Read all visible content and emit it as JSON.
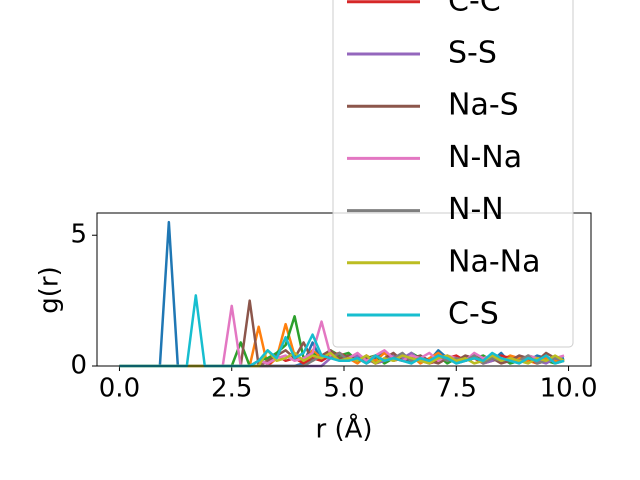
{
  "chart_data": {
    "type": "line",
    "xlabel": "r (Å)",
    "ylabel": "g(r)",
    "x": [
      0,
      0.1,
      0.3,
      0.5,
      0.7,
      0.9,
      1.1,
      1.3,
      1.5,
      1.7,
      1.9,
      2.1,
      2.3,
      2.5,
      2.7,
      2.9,
      3.1,
      3.3,
      3.5,
      3.7,
      3.9,
      4.1,
      4.3,
      4.5,
      4.7,
      4.9,
      5.1,
      5.3,
      5.5,
      5.7,
      5.9,
      6.1,
      6.3,
      6.5,
      6.7,
      6.9,
      7.1,
      7.3,
      7.5,
      7.7,
      7.9,
      8.1,
      8.3,
      8.5,
      8.7,
      8.9,
      9.1,
      9.3,
      9.5,
      9.7,
      9.9
    ],
    "xlim": [
      -0.5,
      10.5
    ],
    "xticks": [
      {
        "value": 0,
        "label": "0.0"
      },
      {
        "value": 2.5,
        "label": "2.5"
      },
      {
        "value": 5,
        "label": "5.0"
      },
      {
        "value": 7.5,
        "label": "7.5"
      },
      {
        "value": 10,
        "label": "10.0"
      }
    ],
    "ylim": [
      0,
      5.85
    ],
    "yticks": [
      0,
      5
    ],
    "grid": false,
    "legend": "upper right",
    "series": [
      {
        "color": "#1f77b4",
        "values": [
          0,
          0,
          0,
          0,
          0,
          0,
          5.5,
          0,
          0,
          0,
          0,
          0,
          0,
          0,
          0,
          0,
          0,
          0,
          0,
          0,
          0,
          0.1,
          0.9,
          0.2,
          0.5,
          0.3,
          0.2,
          0.4,
          0.1,
          0.3,
          0.5,
          0.2,
          0.3,
          0.1,
          0.4,
          0.2,
          0.6,
          0.3,
          0.1,
          0.2,
          0.4,
          0.3,
          0.2,
          0.5,
          0.1,
          0.3,
          0.2,
          0.4,
          0.3,
          0.2,
          0.3
        ]
      },
      {
        "color": "#ff7f0e",
        "values": [
          0,
          0,
          0,
          0,
          0,
          0,
          0,
          0,
          0,
          0,
          0,
          0,
          0,
          0,
          0,
          0,
          1.5,
          0,
          0.3,
          1.6,
          0.4,
          0.2,
          0.6,
          0.3,
          0.5,
          0.2,
          0.3,
          0.1,
          0.4,
          0.2,
          0.5,
          0.2,
          0.3,
          0.4,
          0.1,
          0.3,
          0.5,
          0.2,
          0.3,
          0.2,
          0.4,
          0.1,
          0.3,
          0.2,
          0.4,
          0.3,
          0.2,
          0.1,
          0.3,
          0.2,
          0.2
        ]
      },
      {
        "color": "#2ca02c",
        "values": [
          0,
          0,
          0,
          0,
          0,
          0,
          0,
          0,
          0,
          0,
          0,
          0,
          0,
          0,
          0.9,
          0,
          0.2,
          0.3,
          0.5,
          0.8,
          1.9,
          0.3,
          0.5,
          0.2,
          0.6,
          0.4,
          0.5,
          0.2,
          0.3,
          0.4,
          0.1,
          0.3,
          0.2,
          0.5,
          0.3,
          0.2,
          0.4,
          0.1,
          0.3,
          0.2,
          0.3,
          0.4,
          0.2,
          0.3,
          0.1,
          0.2,
          0.4,
          0.3,
          0.2,
          0.1,
          0.2
        ]
      },
      {
        "name": "C-C",
        "color": "#d62728",
        "values": [
          0,
          0,
          0,
          0,
          0,
          0,
          0,
          0,
          0,
          0,
          0,
          0,
          0,
          0,
          0,
          0,
          0,
          0,
          0.4,
          0.2,
          0.3,
          0.1,
          0.3,
          0.2,
          0.4,
          0.5,
          0.3,
          0.2,
          0.4,
          0.1,
          0.2,
          0.3,
          0.2,
          0.4,
          0.3,
          0.1,
          0.2,
          0.3,
          0.4,
          0.2,
          0.3,
          0.1,
          0.2,
          0.4,
          0.3,
          0.2,
          0.3,
          0.1,
          0.2,
          0.3,
          0.2
        ]
      },
      {
        "name": "S-S",
        "color": "#9467bd",
        "values": [
          0,
          0,
          0,
          0,
          0,
          0,
          0,
          0,
          0,
          0,
          0,
          0,
          0,
          0,
          0,
          0,
          0,
          0,
          0,
          0,
          0,
          0,
          0,
          0,
          0.3,
          0.5,
          0.2,
          0.4,
          0.3,
          0.1,
          0.2,
          0.4,
          0.3,
          0.5,
          0.2,
          0.1,
          0.3,
          0.4,
          0.2,
          0.3,
          0.4,
          0.1,
          0.2,
          0.3,
          0.2,
          0.4,
          0.3,
          0.2,
          0.1,
          0.3,
          0.2
        ]
      },
      {
        "name": "Na-S",
        "color": "#8c564b",
        "values": [
          0,
          0,
          0,
          0,
          0,
          0,
          0,
          0,
          0,
          0,
          0,
          0,
          0,
          0,
          0,
          2.5,
          0,
          0.2,
          0.4,
          0.6,
          0.3,
          0.9,
          0.2,
          0.4,
          0.6,
          0.3,
          0.4,
          0.2,
          0.3,
          0.1,
          0.3,
          0.5,
          0.2,
          0.3,
          0.4,
          0.2,
          0.1,
          0.3,
          0.2,
          0.4,
          0.3,
          0.2,
          0.3,
          0.1,
          0.2,
          0.4,
          0.3,
          0.2,
          0.5,
          0.3,
          0.2
        ]
      },
      {
        "name": "N-Na",
        "color": "#e377c2",
        "values": [
          0,
          0,
          0,
          0,
          0,
          0,
          0,
          0,
          0,
          0,
          0,
          0,
          0,
          2.3,
          0,
          0,
          0.2,
          0.1,
          0.3,
          0.4,
          0.2,
          0.3,
          0.5,
          1.7,
          0.4,
          0.2,
          0.3,
          0.5,
          0.2,
          0.4,
          0.6,
          0.3,
          0.2,
          0.4,
          0.3,
          0.5,
          0.2,
          0.4,
          0.3,
          0.2,
          0.5,
          0.3,
          0.4,
          0.2,
          0.3,
          0.1,
          0.4,
          0.3,
          0.2,
          0.3,
          0.4
        ]
      },
      {
        "name": "N-N",
        "color": "#7f7f7f",
        "values": [
          0,
          0,
          0,
          0,
          0,
          0,
          0,
          0,
          0,
          0,
          0,
          0,
          0,
          0,
          0,
          0,
          0,
          0,
          0,
          0,
          0,
          0,
          0.2,
          0.4,
          0.3,
          0.5,
          0.2,
          0.3,
          0.1,
          0.4,
          0.2,
          0.3,
          0.5,
          0.2,
          0.3,
          0.1,
          0.4,
          0.2,
          0.3,
          0.2,
          0.4,
          0.1,
          0.3,
          0.2,
          0.3,
          0.2,
          0.4,
          0.1,
          0.2,
          0.3,
          0.2
        ]
      },
      {
        "name": "Na-Na",
        "color": "#bcbd22",
        "values": [
          0,
          0,
          0,
          0,
          0,
          0,
          0,
          0,
          0,
          0,
          0,
          0,
          0,
          0,
          0,
          0,
          0,
          0.6,
          0.2,
          0.3,
          0.5,
          0.2,
          0.4,
          0.3,
          0.5,
          0.2,
          0.3,
          0.2,
          0.4,
          0.1,
          0.3,
          0.2,
          0.4,
          0.3,
          0.2,
          0.1,
          0.3,
          0.4,
          0.2,
          0.3,
          0.1,
          0.2,
          0.4,
          0.2,
          0.3,
          0.2,
          0.1,
          0.3,
          0.2,
          0.4,
          0.2
        ]
      },
      {
        "name": "C-S",
        "color": "#17becf",
        "values": [
          0,
          0,
          0,
          0,
          0,
          0,
          0,
          0,
          0,
          2.7,
          0,
          0,
          0,
          0,
          0,
          0,
          0.2,
          0.6,
          0.3,
          1.1,
          0.3,
          0.5,
          1.2,
          0.4,
          0.3,
          0.2,
          0.2,
          0.3,
          0.1,
          0.4,
          0.2,
          0.3,
          0.2,
          0.1,
          0.3,
          0.2,
          0.4,
          0.3,
          0.1,
          0.2,
          0.3,
          0.2,
          0.5,
          0.3,
          0.2,
          0.1,
          0.3,
          0.2,
          0.4,
          0.1,
          0.2
        ]
      }
    ]
  }
}
